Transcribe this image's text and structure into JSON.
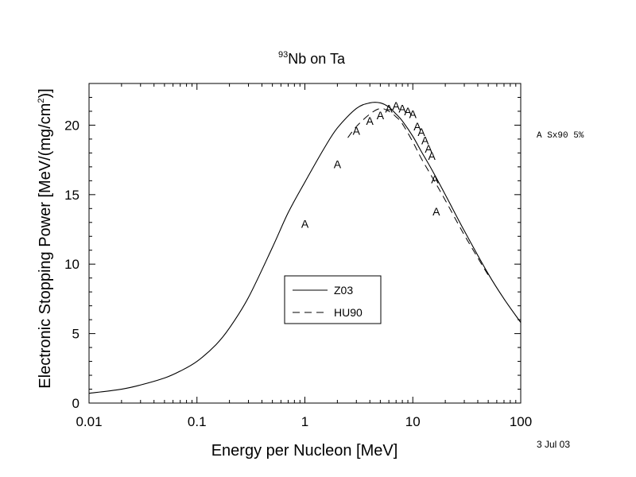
{
  "chart_data": {
    "type": "line",
    "title_superscript": "93",
    "title": "Nb on Ta",
    "xlabel": "Energy per Nucleon [MeV]",
    "ylabel_main": "Electronic Stopping Power [MeV/(mg/cm",
    "ylabel_superscript": "2",
    "ylabel_tail": ")]",
    "xscale": "log",
    "xlim": [
      0.01,
      100
    ],
    "ylim": [
      0,
      23
    ],
    "x_ticks": [
      "0.01",
      "0.1",
      "1",
      "10",
      "100"
    ],
    "y_ticks": [
      "0",
      "5",
      "10",
      "15",
      "20"
    ],
    "series": [
      {
        "name": "Z03",
        "style": "solid",
        "x": [
          0.01,
          0.02,
          0.03,
          0.05,
          0.07,
          0.1,
          0.15,
          0.2,
          0.3,
          0.5,
          0.7,
          1.0,
          1.5,
          2.0,
          3.0,
          4.0,
          5.0,
          6.0,
          7.0,
          8.0,
          10.0,
          12.0,
          15.0,
          20.0,
          30.0,
          50.0,
          70.0,
          100.0
        ],
        "y": [
          0.7,
          1.0,
          1.3,
          1.8,
          2.3,
          3.0,
          4.2,
          5.4,
          7.6,
          11.2,
          13.7,
          15.9,
          18.3,
          19.8,
          21.2,
          21.6,
          21.6,
          21.3,
          20.8,
          20.3,
          19.2,
          18.1,
          16.8,
          15.0,
          12.4,
          9.3,
          7.5,
          5.8
        ]
      },
      {
        "name": "HU90",
        "style": "dashed",
        "x": [
          2.5,
          3.0,
          4.0,
          5.0,
          6.0,
          7.0,
          8.0,
          10.0,
          12.0,
          15.0,
          20.0,
          30.0,
          50.0
        ],
        "y": [
          19.1,
          19.9,
          20.8,
          21.2,
          21.0,
          20.6,
          20.1,
          18.8,
          17.6,
          16.3,
          14.6,
          12.1,
          9.2
        ]
      }
    ],
    "experimental": {
      "marker": "A",
      "x": [
        1.0,
        2.0,
        3.0,
        4.0,
        5.0,
        6.0,
        7.0,
        8.0,
        9.0,
        10.0,
        11.0,
        12.0,
        13.0,
        14.0,
        15.0,
        16.0,
        16.5
      ],
      "y": [
        12.9,
        17.2,
        19.6,
        20.3,
        20.7,
        21.2,
        21.4,
        21.2,
        21.0,
        20.8,
        19.9,
        19.5,
        18.9,
        18.3,
        17.8,
        16.1,
        13.8
      ]
    },
    "legend": {
      "placement": "center",
      "entries": [
        {
          "label": "Z03",
          "style": "solid"
        },
        {
          "label": "HU90",
          "style": "dashed"
        }
      ]
    },
    "side_note": "A Sx90 5%",
    "date_note": "3 Jul 03"
  }
}
